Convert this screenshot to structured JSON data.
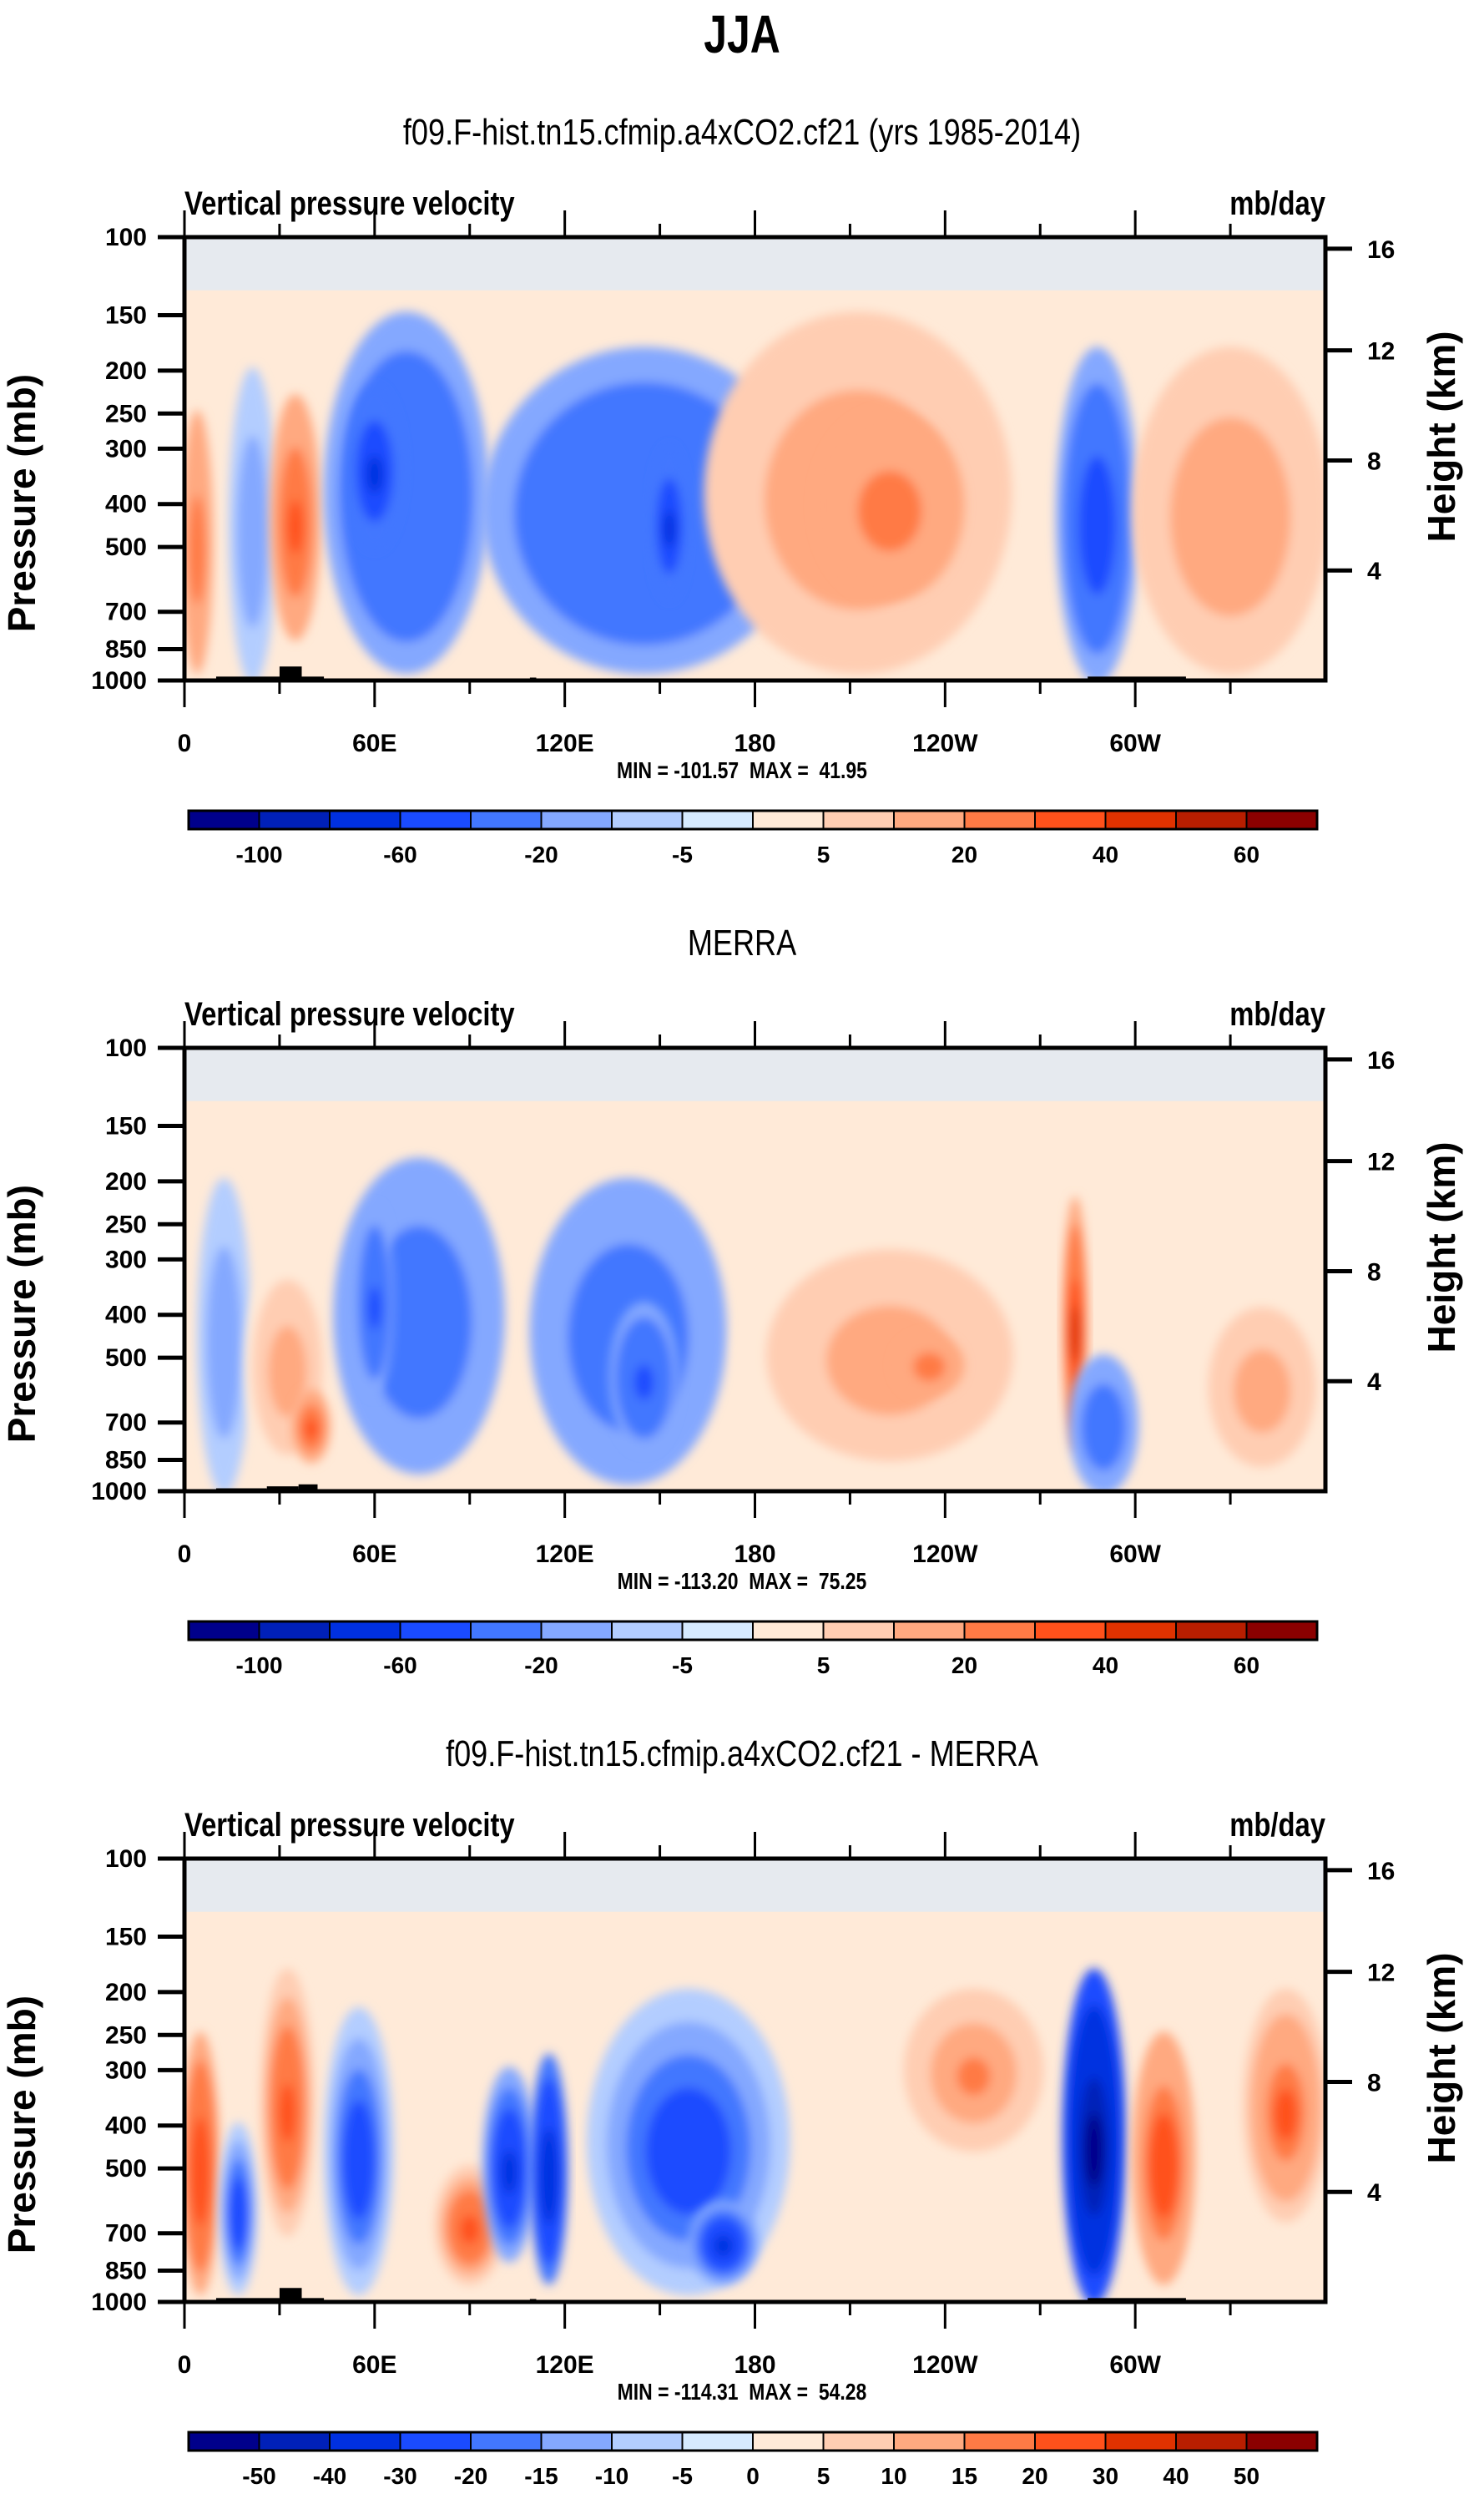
{
  "figure": {
    "title": "JJA"
  },
  "palettes": {
    "colors": [
      "#00008b",
      "#0020b8",
      "#0030e0",
      "#1a4bff",
      "#4277ff",
      "#84a8ff",
      "#b3cdff",
      "#d6eaff",
      "#ffead8",
      "#ffcdb2",
      "#ffa980",
      "#ff7a45",
      "#ff511b",
      "#e03200",
      "#b81e00",
      "#8b0000"
    ]
  },
  "chart_data": [
    {
      "type": "heatmap",
      "subtype": "filled-contour pressure-longitude cross-section",
      "title": "f09.F-hist.tn15.cfmip.a4xCO2.cf21 (yrs 1985-2014)",
      "variable_label": "Vertical pressure velocity",
      "units_label": "mb/day",
      "ylabel": "Pressure (mb)",
      "ylabel_right": "Height (km)",
      "xlabel": "",
      "x_ticks": [
        "0",
        "60E",
        "120E",
        "180",
        "120W",
        "60W"
      ],
      "x_range": [
        0,
        360
      ],
      "y_ticks": [
        100,
        150,
        200,
        250,
        300,
        400,
        500,
        700,
        850,
        1000
      ],
      "y_range": [
        100,
        1000
      ],
      "y_scale": "log",
      "y_right_ticks": [
        16,
        12,
        8,
        4
      ],
      "stats": "MIN = -101.57  MAX =  41.95",
      "colorbar_levels": [
        "-100",
        "-80",
        "-60",
        "-40",
        "-20",
        "-10",
        "-5",
        "0",
        "5",
        "10",
        "20",
        "30",
        "40",
        "50",
        "60"
      ],
      "colorbar_labels": [
        "-100",
        "-60",
        "-20",
        "-5",
        "5",
        "20",
        "40",
        "60"
      ],
      "features": [
        {
          "lon_min": 0,
          "lon_max": 8,
          "p_top": 250,
          "p_bottom": 950,
          "value": 25
        },
        {
          "lon_min": 15,
          "lon_max": 28,
          "p_top": 200,
          "p_bottom": 1000,
          "value": -15
        },
        {
          "lon_min": 28,
          "lon_max": 42,
          "p_top": 230,
          "p_bottom": 800,
          "value": 30
        },
        {
          "lon_min": 45,
          "lon_max": 95,
          "p_top": 150,
          "p_bottom": 950,
          "value": -40
        },
        {
          "lon_min": 52,
          "lon_max": 68,
          "p_top": 220,
          "p_bottom": 500,
          "value": -70
        },
        {
          "lon_min": 95,
          "lon_max": 195,
          "p_top": 180,
          "p_bottom": 950,
          "value": -40
        },
        {
          "lon_min": 148,
          "lon_max": 158,
          "p_top": 300,
          "p_bottom": 650,
          "value": -70
        },
        {
          "lon_min": 165,
          "lon_max": 260,
          "p_top": 150,
          "p_bottom": 950,
          "value": 15
        },
        {
          "lon_min": 200,
          "lon_max": 245,
          "p_top": 250,
          "p_bottom": 650,
          "value": 25
        },
        {
          "lon_min": 276,
          "lon_max": 300,
          "p_top": 180,
          "p_bottom": 1000,
          "value": -50
        },
        {
          "lon_min": 300,
          "lon_max": 360,
          "p_top": 180,
          "p_bottom": 950,
          "value": 18
        }
      ]
    },
    {
      "type": "heatmap",
      "subtype": "filled-contour pressure-longitude cross-section",
      "title": "MERRA",
      "variable_label": "Vertical pressure velocity",
      "units_label": "mb/day",
      "ylabel": "Pressure (mb)",
      "ylabel_right": "Height (km)",
      "xlabel": "",
      "x_ticks": [
        "0",
        "60E",
        "120E",
        "180",
        "120W",
        "60W"
      ],
      "x_range": [
        0,
        360
      ],
      "y_ticks": [
        100,
        150,
        200,
        250,
        300,
        400,
        500,
        700,
        850,
        1000
      ],
      "y_range": [
        100,
        1000
      ],
      "y_scale": "log",
      "y_right_ticks": [
        16,
        12,
        8,
        4
      ],
      "stats": "MIN = -113.20  MAX =  75.25",
      "colorbar_levels": [
        "-100",
        "-80",
        "-60",
        "-40",
        "-20",
        "-10",
        "-5",
        "0",
        "5",
        "10",
        "20",
        "30",
        "40",
        "50",
        "60"
      ],
      "colorbar_labels": [
        "-100",
        "-60",
        "-20",
        "-5",
        "5",
        "20",
        "40",
        "60"
      ],
      "features": [
        {
          "lon_min": 5,
          "lon_max": 20,
          "p_top": 200,
          "p_bottom": 1000,
          "value": -15
        },
        {
          "lon_min": 20,
          "lon_max": 45,
          "p_top": 300,
          "p_bottom": 900,
          "value": 12
        },
        {
          "lon_min": 35,
          "lon_max": 45,
          "p_top": 600,
          "p_bottom": 850,
          "value": 35
        },
        {
          "lon_min": 48,
          "lon_max": 100,
          "p_top": 180,
          "p_bottom": 900,
          "value": -30
        },
        {
          "lon_min": 55,
          "lon_max": 65,
          "p_top": 230,
          "p_bottom": 600,
          "value": -45
        },
        {
          "lon_min": 110,
          "lon_max": 170,
          "p_top": 200,
          "p_bottom": 950,
          "value": -30
        },
        {
          "lon_min": 135,
          "lon_max": 155,
          "p_top": 380,
          "p_bottom": 800,
          "value": -45
        },
        {
          "lon_min": 175,
          "lon_max": 270,
          "p_top": 250,
          "p_bottom": 950,
          "value": 12
        },
        {
          "lon_min": 225,
          "lon_max": 245,
          "p_top": 450,
          "p_bottom": 600,
          "value": 25
        },
        {
          "lon_min": 278,
          "lon_max": 284,
          "p_top": 220,
          "p_bottom": 800,
          "value": 40
        },
        {
          "lon_min": 280,
          "lon_max": 300,
          "p_top": 500,
          "p_bottom": 1000,
          "value": -35
        },
        {
          "lon_min": 320,
          "lon_max": 360,
          "p_top": 350,
          "p_bottom": 950,
          "value": 12
        }
      ]
    },
    {
      "type": "heatmap",
      "subtype": "filled-contour pressure-longitude cross-section",
      "title": "f09.F-hist.tn15.cfmip.a4xCO2.cf21 - MERRA",
      "variable_label": "Vertical pressure velocity",
      "units_label": "mb/day",
      "ylabel": "Pressure (mb)",
      "ylabel_right": "Height (km)",
      "xlabel": "",
      "x_ticks": [
        "0",
        "60E",
        "120E",
        "180",
        "120W",
        "60W"
      ],
      "x_range": [
        0,
        360
      ],
      "y_ticks": [
        100,
        150,
        200,
        250,
        300,
        400,
        500,
        700,
        850,
        1000
      ],
      "y_range": [
        100,
        1000
      ],
      "y_scale": "log",
      "y_right_ticks": [
        16,
        12,
        8,
        4
      ],
      "stats": "MIN = -114.31  MAX =  54.28",
      "colorbar_levels": [
        "-50",
        "-40",
        "-30",
        "-20",
        "-15",
        "-10",
        "-5",
        "0",
        "5",
        "10",
        "15",
        "20",
        "30",
        "40",
        "50"
      ],
      "colorbar_labels": [
        "-50",
        "-40",
        "-30",
        "-20",
        "-15",
        "-10",
        "-5",
        "0",
        "5",
        "10",
        "15",
        "20",
        "30",
        "40",
        "50"
      ],
      "features": [
        {
          "lon_min": 0,
          "lon_max": 10,
          "p_top": 250,
          "p_bottom": 950,
          "value": 28
        },
        {
          "lon_min": 12,
          "lon_max": 22,
          "p_top": 400,
          "p_bottom": 950,
          "value": -25
        },
        {
          "lon_min": 25,
          "lon_max": 40,
          "p_top": 180,
          "p_bottom": 700,
          "value": 22
        },
        {
          "lon_min": 45,
          "lon_max": 65,
          "p_top": 220,
          "p_bottom": 950,
          "value": -25
        },
        {
          "lon_min": 80,
          "lon_max": 100,
          "p_top": 500,
          "p_bottom": 900,
          "value": 22
        },
        {
          "lon_min": 95,
          "lon_max": 110,
          "p_top": 300,
          "p_bottom": 800,
          "value": -35
        },
        {
          "lon_min": 110,
          "lon_max": 120,
          "p_top": 280,
          "p_bottom": 900,
          "value": -40
        },
        {
          "lon_min": 128,
          "lon_max": 190,
          "p_top": 200,
          "p_bottom": 950,
          "value": -25
        },
        {
          "lon_min": 160,
          "lon_max": 180,
          "p_top": 600,
          "p_bottom": 900,
          "value": -35
        },
        {
          "lon_min": 228,
          "lon_max": 270,
          "p_top": 200,
          "p_bottom": 450,
          "value": 17
        },
        {
          "lon_min": 278,
          "lon_max": 296,
          "p_top": 180,
          "p_bottom": 1000,
          "value": -55
        },
        {
          "lon_min": 300,
          "lon_max": 318,
          "p_top": 250,
          "p_bottom": 900,
          "value": 25
        },
        {
          "lon_min": 335,
          "lon_max": 360,
          "p_top": 200,
          "p_bottom": 650,
          "value": 20
        }
      ]
    }
  ]
}
